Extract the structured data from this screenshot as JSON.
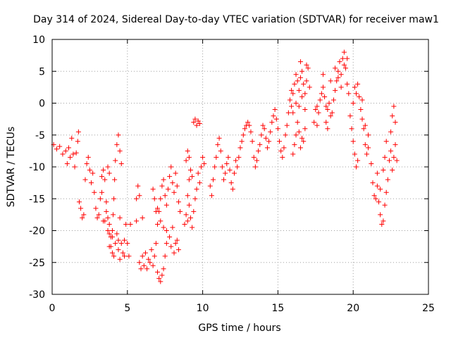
{
  "chart_data": {
    "type": "scatter",
    "title": "Day 314 of 2024, Sidereal Day-to-day VTEC variation (SDTVAR) for receiver maw1",
    "xlabel": "GPS time / hours",
    "ylabel": "SDTVAR / TECUs",
    "xlim": [
      0,
      25
    ],
    "ylim": [
      -30,
      10
    ],
    "xticks": [
      0,
      5,
      10,
      15,
      20,
      25
    ],
    "yticks": [
      -30,
      -25,
      -20,
      -15,
      -10,
      -5,
      0,
      5,
      10
    ],
    "grid": true,
    "marker": "plus",
    "color": "#ff0000",
    "series": [
      {
        "name": "SDTVAR",
        "points": [
          [
            0.1,
            -6.5
          ],
          [
            0.3,
            -7.2
          ],
          [
            0.5,
            -6.8
          ],
          [
            0.7,
            -8.0
          ],
          [
            0.9,
            -7.5
          ],
          [
            1.0,
            -9.5
          ],
          [
            1.1,
            -7.0
          ],
          [
            1.2,
            -8.5
          ],
          [
            1.3,
            -5.5
          ],
          [
            1.4,
            -8.0
          ],
          [
            1.5,
            -10.0
          ],
          [
            1.6,
            -7.8
          ],
          [
            1.7,
            -6.0
          ],
          [
            1.75,
            -4.5
          ],
          [
            1.8,
            -15.5
          ],
          [
            1.9,
            -16.5
          ],
          [
            2.0,
            -18.0
          ],
          [
            2.1,
            -17.5
          ],
          [
            2.2,
            -12.0
          ],
          [
            2.3,
            -9.5
          ],
          [
            2.4,
            -8.5
          ],
          [
            2.5,
            -10.5
          ],
          [
            2.6,
            -12.5
          ],
          [
            2.7,
            -11.0
          ],
          [
            2.8,
            -14.0
          ],
          [
            2.9,
            -16.5
          ],
          [
            3.0,
            -18.0
          ],
          [
            3.1,
            -17.5
          ],
          [
            3.2,
            -15.0
          ],
          [
            3.3,
            -11.5
          ],
          [
            3.4,
            -10.5
          ],
          [
            3.5,
            -12.0
          ],
          [
            3.6,
            -15.5
          ],
          [
            3.7,
            -18.0
          ],
          [
            3.8,
            -20.5
          ],
          [
            3.9,
            -22.5
          ],
          [
            4.0,
            -20.0
          ],
          [
            4.05,
            -17.5
          ],
          [
            4.1,
            -15.0
          ],
          [
            4.15,
            -12.0
          ],
          [
            4.2,
            -9.0
          ],
          [
            4.3,
            -6.5
          ],
          [
            4.4,
            -5.0
          ],
          [
            4.5,
            -7.5
          ],
          [
            4.6,
            -9.5
          ],
          [
            3.3,
            -14.0
          ],
          [
            3.5,
            -18.5
          ],
          [
            3.7,
            -20.0
          ],
          [
            3.8,
            -19.0
          ],
          [
            3.9,
            -21.0
          ],
          [
            4.0,
            -23.5
          ],
          [
            4.1,
            -24.0
          ],
          [
            4.2,
            -22.0
          ],
          [
            4.3,
            -20.5
          ],
          [
            4.4,
            -23.0
          ],
          [
            4.5,
            -24.5
          ],
          [
            4.6,
            -22.0
          ],
          [
            4.7,
            -23.5
          ],
          [
            4.8,
            -21.5
          ],
          [
            4.9,
            -19.0
          ],
          [
            5.0,
            -22.0
          ],
          [
            5.1,
            -24.0
          ],
          [
            3.4,
            -18.5
          ],
          [
            3.6,
            -17.0
          ],
          [
            3.8,
            -22.5
          ],
          [
            4.0,
            -21.0
          ],
          [
            4.4,
            -21.5
          ],
          [
            4.8,
            -24.0
          ],
          [
            3.8,
            -11.0
          ],
          [
            3.7,
            -10.0
          ],
          [
            4.5,
            -18.0
          ],
          [
            5.2,
            -19.0
          ],
          [
            5.6,
            -18.5
          ],
          [
            5.8,
            -25.0
          ],
          [
            5.9,
            -26.0
          ],
          [
            6.0,
            -24.0
          ],
          [
            6.1,
            -25.5
          ],
          [
            6.2,
            -23.5
          ],
          [
            6.3,
            -26.0
          ],
          [
            6.4,
            -24.5
          ],
          [
            6.5,
            -25.0
          ],
          [
            6.6,
            -23.0
          ],
          [
            6.7,
            -25.5
          ],
          [
            6.8,
            -24.0
          ],
          [
            6.9,
            -22.0
          ],
          [
            7.0,
            -26.5
          ],
          [
            7.1,
            -27.5
          ],
          [
            7.2,
            -28.0
          ],
          [
            7.3,
            -27.0
          ],
          [
            7.4,
            -26.0
          ],
          [
            7.5,
            -24.0
          ],
          [
            7.6,
            -22.0
          ],
          [
            7.0,
            -19.0
          ],
          [
            7.1,
            -17.0
          ],
          [
            7.2,
            -15.0
          ],
          [
            7.3,
            -13.0
          ],
          [
            7.4,
            -12.0
          ],
          [
            7.5,
            -14.5
          ],
          [
            7.6,
            -16.0
          ],
          [
            7.7,
            -13.5
          ],
          [
            7.8,
            -11.5
          ],
          [
            7.9,
            -10.0
          ],
          [
            8.0,
            -12.5
          ],
          [
            8.1,
            -14.0
          ],
          [
            8.2,
            -11.0
          ],
          [
            8.3,
            -13.0
          ],
          [
            8.4,
            -15.5
          ],
          [
            8.5,
            -17.0
          ],
          [
            6.7,
            -13.5
          ],
          [
            6.8,
            -15.0
          ],
          [
            6.9,
            -17.0
          ],
          [
            7.0,
            -16.5
          ],
          [
            7.2,
            -18.5
          ],
          [
            7.4,
            -19.5
          ],
          [
            7.6,
            -20.0
          ],
          [
            7.8,
            -21.0
          ],
          [
            7.9,
            -22.5
          ],
          [
            8.0,
            -19.5
          ],
          [
            8.1,
            -23.5
          ],
          [
            8.2,
            -22.0
          ],
          [
            8.3,
            -21.5
          ],
          [
            8.4,
            -23.0
          ],
          [
            6.0,
            -18.0
          ],
          [
            5.6,
            -15.0
          ],
          [
            5.7,
            -13.0
          ],
          [
            5.8,
            -14.5
          ],
          [
            8.8,
            -19.0
          ],
          [
            8.9,
            -17.5
          ],
          [
            9.0,
            -18.5
          ],
          [
            9.1,
            -16.0
          ],
          [
            9.2,
            -18.0
          ],
          [
            9.3,
            -19.5
          ],
          [
            9.4,
            -17.0
          ],
          [
            9.5,
            -15.0
          ],
          [
            9.6,
            -13.5
          ],
          [
            9.7,
            -11.0
          ],
          [
            9.8,
            -12.5
          ],
          [
            9.9,
            -10.0
          ],
          [
            10.0,
            -8.5
          ],
          [
            10.1,
            -9.5
          ],
          [
            9.0,
            -14.5
          ],
          [
            9.1,
            -12.0
          ],
          [
            8.9,
            -9.0
          ],
          [
            9.0,
            -7.5
          ],
          [
            9.1,
            -8.5
          ],
          [
            9.2,
            -10.5
          ],
          [
            9.3,
            -11.5
          ],
          [
            9.4,
            -3.0
          ],
          [
            9.5,
            -2.5
          ],
          [
            9.6,
            -3.5
          ],
          [
            9.7,
            -2.8
          ],
          [
            9.8,
            -3.2
          ],
          [
            10.5,
            -13.0
          ],
          [
            10.6,
            -14.5
          ],
          [
            10.7,
            -12.0
          ],
          [
            10.8,
            -10.0
          ],
          [
            10.9,
            -8.5
          ],
          [
            11.0,
            -6.5
          ],
          [
            11.1,
            -5.5
          ],
          [
            11.2,
            -7.5
          ],
          [
            11.3,
            -10.0
          ],
          [
            11.4,
            -12.0
          ],
          [
            11.5,
            -11.0
          ],
          [
            11.6,
            -9.5
          ],
          [
            11.7,
            -8.5
          ],
          [
            11.8,
            -10.5
          ],
          [
            11.9,
            -12.5
          ],
          [
            12.0,
            -13.5
          ],
          [
            12.1,
            -11.0
          ],
          [
            12.2,
            -9.0
          ],
          [
            12.3,
            -10.0
          ],
          [
            12.4,
            -8.5
          ],
          [
            12.5,
            -7.0
          ],
          [
            12.6,
            -6.0
          ],
          [
            12.7,
            -5.0
          ],
          [
            12.8,
            -4.0
          ],
          [
            12.9,
            -3.5
          ],
          [
            13.0,
            -3.0
          ],
          [
            13.1,
            -3.5
          ],
          [
            13.2,
            -4.5
          ],
          [
            13.3,
            -6.0
          ],
          [
            13.4,
            -8.5
          ],
          [
            13.5,
            -10.0
          ],
          [
            13.6,
            -9.0
          ],
          [
            13.7,
            -7.5
          ],
          [
            13.8,
            -6.5
          ],
          [
            13.9,
            -5.0
          ],
          [
            14.0,
            -3.5
          ],
          [
            14.1,
            -4.0
          ],
          [
            14.2,
            -5.5
          ],
          [
            14.3,
            -7.0
          ],
          [
            14.4,
            -6.0
          ],
          [
            14.5,
            -4.5
          ],
          [
            14.6,
            -3.0
          ],
          [
            14.7,
            -2.0
          ],
          [
            14.8,
            -1.0
          ],
          [
            14.9,
            -2.5
          ],
          [
            15.0,
            -4.0
          ],
          [
            15.1,
            -6.0
          ],
          [
            15.2,
            -7.5
          ],
          [
            15.3,
            -8.5
          ],
          [
            15.4,
            -7.0
          ],
          [
            15.5,
            -5.0
          ],
          [
            15.6,
            -3.5
          ],
          [
            15.7,
            -1.5
          ],
          [
            15.8,
            0.5
          ],
          [
            15.9,
            2.0
          ],
          [
            16.0,
            1.5
          ],
          [
            16.1,
            3.0
          ],
          [
            16.2,
            4.5
          ],
          [
            16.3,
            3.5
          ],
          [
            16.4,
            2.0
          ],
          [
            16.5,
            4.0
          ],
          [
            16.6,
            5.0
          ],
          [
            16.7,
            3.0
          ],
          [
            16.8,
            1.5
          ],
          [
            16.9,
            3.5
          ],
          [
            17.0,
            5.5
          ],
          [
            17.1,
            2.5
          ],
          [
            15.9,
            -0.5
          ],
          [
            16.0,
            -1.5
          ],
          [
            16.2,
            0.0
          ],
          [
            16.4,
            -0.5
          ],
          [
            16.6,
            1.0
          ],
          [
            16.8,
            -1.0
          ],
          [
            16.0,
            -8.0
          ],
          [
            16.1,
            -6.5
          ],
          [
            16.2,
            -5.0
          ],
          [
            16.3,
            -3.0
          ],
          [
            16.4,
            -4.5
          ],
          [
            16.5,
            -7.0
          ],
          [
            16.6,
            -5.5
          ],
          [
            16.7,
            -6.0
          ],
          [
            16.8,
            -4.0
          ],
          [
            16.5,
            6.5
          ],
          [
            16.9,
            6.0
          ],
          [
            17.5,
            -1.0
          ],
          [
            17.6,
            -0.5
          ],
          [
            17.7,
            -1.5
          ],
          [
            17.8,
            0.5
          ],
          [
            17.9,
            1.5
          ],
          [
            18.0,
            2.5
          ],
          [
            18.1,
            1.0
          ],
          [
            18.2,
            -0.5
          ],
          [
            18.3,
            -1.0
          ],
          [
            18.4,
            0.0
          ],
          [
            18.5,
            -2.0
          ],
          [
            18.6,
            -1.5
          ],
          [
            18.7,
            0.5
          ],
          [
            18.8,
            2.0
          ],
          [
            18.9,
            3.5
          ],
          [
            19.0,
            5.0
          ],
          [
            19.1,
            6.5
          ],
          [
            19.2,
            4.5
          ],
          [
            19.3,
            7.0
          ],
          [
            19.4,
            6.0
          ],
          [
            19.5,
            5.5
          ],
          [
            19.6,
            3.0
          ],
          [
            19.7,
            1.5
          ],
          [
            18.2,
            -3.0
          ],
          [
            18.5,
            3.5
          ],
          [
            18.8,
            5.5
          ],
          [
            19.0,
            4.0
          ],
          [
            19.2,
            2.5
          ],
          [
            19.4,
            8.0
          ],
          [
            19.6,
            7.0
          ],
          [
            17.4,
            -3.0
          ],
          [
            17.6,
            -3.5
          ],
          [
            18.3,
            -4.0
          ],
          [
            18.0,
            4.5
          ],
          [
            19.8,
            -2.0
          ],
          [
            19.9,
            -4.0
          ],
          [
            20.0,
            -6.0
          ],
          [
            20.1,
            -8.0
          ],
          [
            20.2,
            -10.0
          ],
          [
            20.3,
            -9.0
          ],
          [
            20.0,
            0.0
          ],
          [
            20.1,
            2.5
          ],
          [
            20.2,
            1.5
          ],
          [
            20.3,
            3.0
          ],
          [
            20.4,
            1.0
          ],
          [
            20.5,
            -1.0
          ],
          [
            20.6,
            -2.5
          ],
          [
            20.7,
            -4.0
          ],
          [
            20.8,
            -6.5
          ],
          [
            20.9,
            -8.0
          ],
          [
            21.0,
            -7.0
          ],
          [
            20.6,
            0.5
          ],
          [
            20.8,
            -3.5
          ],
          [
            21.0,
            -5.0
          ],
          [
            21.2,
            -9.5
          ],
          [
            21.3,
            -12.5
          ],
          [
            21.4,
            -14.5
          ],
          [
            21.5,
            -15.0
          ],
          [
            21.6,
            -13.0
          ],
          [
            21.7,
            -15.5
          ],
          [
            21.8,
            -17.5
          ],
          [
            21.9,
            -19.0
          ],
          [
            22.0,
            -18.5
          ],
          [
            22.1,
            -16.0
          ],
          [
            22.2,
            -14.0
          ],
          [
            22.3,
            -12.0
          ],
          [
            22.1,
            -8.5
          ],
          [
            22.2,
            -6.0
          ],
          [
            22.0,
            -10.5
          ],
          [
            21.8,
            -13.5
          ],
          [
            21.6,
            -11.0
          ],
          [
            22.4,
            -9.0
          ],
          [
            22.5,
            -7.5
          ],
          [
            22.6,
            -10.5
          ],
          [
            22.7,
            -8.5
          ],
          [
            22.5,
            -4.5
          ],
          [
            22.6,
            -2.0
          ],
          [
            22.7,
            -0.5
          ],
          [
            22.8,
            -3.0
          ],
          [
            22.8,
            -6.5
          ],
          [
            22.9,
            -9.0
          ]
        ]
      }
    ]
  }
}
